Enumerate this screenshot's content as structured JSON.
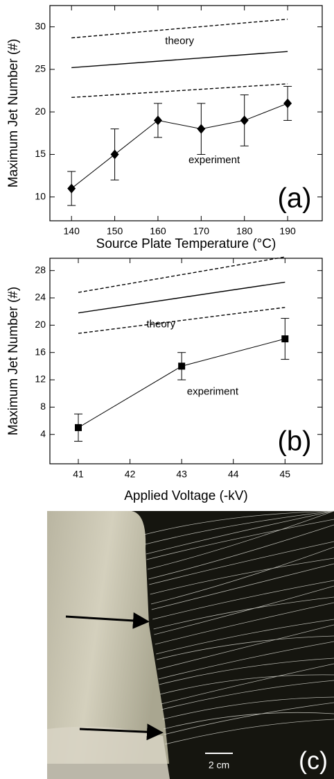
{
  "chart_data": [
    {
      "type": "line",
      "xlabel": "Source Plate Temperature (°C)",
      "ylabel": "Maximum Jet Number (#)",
      "panel_label": "(a)",
      "xlim": [
        135,
        198
      ],
      "ylim": [
        7.2,
        32.5
      ],
      "xticks": [
        140,
        150,
        160,
        170,
        180,
        190
      ],
      "yticks": [
        10,
        15,
        20,
        25,
        30
      ],
      "series": [
        {
          "name": "experiment",
          "color": "#000000",
          "style": "solid",
          "marker": "diamond",
          "x": [
            140,
            150,
            160,
            170,
            180,
            190
          ],
          "values": [
            11,
            15,
            19,
            18,
            19,
            21
          ],
          "errors": [
            2,
            3,
            2,
            3,
            3,
            2
          ]
        },
        {
          "name": "theory",
          "color": "#000000",
          "style": "solid",
          "x": [
            140,
            190
          ],
          "values": [
            25.2,
            27.1
          ]
        },
        {
          "color": "#000000",
          "style": "dashed",
          "x": [
            140,
            190
          ],
          "values": [
            28.7,
            30.9
          ]
        },
        {
          "color": "#000000",
          "style": "dashed",
          "x": [
            140,
            190
          ],
          "values": [
            21.7,
            23.3
          ]
        }
      ]
    },
    {
      "type": "line",
      "xlabel": "Applied Voltage (-kV)",
      "ylabel": "Maximum Jet Number (#)",
      "panel_label": "(b)",
      "xlim": [
        40.45,
        45.72
      ],
      "ylim": [
        -0.3,
        29.8
      ],
      "xticks": [
        41,
        42,
        43,
        44,
        45
      ],
      "yticks": [
        4,
        8,
        12,
        16,
        20,
        24,
        28
      ],
      "series": [
        {
          "name": "experiment",
          "color": "#000000",
          "style": "solid",
          "marker": "square",
          "x": [
            41,
            43,
            45
          ],
          "values": [
            5,
            14,
            18
          ],
          "errors": [
            2,
            2,
            3
          ]
        },
        {
          "name": "theory",
          "color": "#000000",
          "style": "solid",
          "x": [
            41,
            45
          ],
          "values": [
            21.8,
            26.3
          ]
        },
        {
          "color": "#000000",
          "style": "dashed",
          "x": [
            41,
            45
          ],
          "values": [
            24.8,
            30.0
          ]
        },
        {
          "color": "#000000",
          "style": "dashed",
          "x": [
            41,
            45
          ],
          "values": [
            18.8,
            22.6
          ]
        }
      ]
    }
  ],
  "photo": {
    "scale_label": "2 cm",
    "panel_label": "(c)"
  }
}
